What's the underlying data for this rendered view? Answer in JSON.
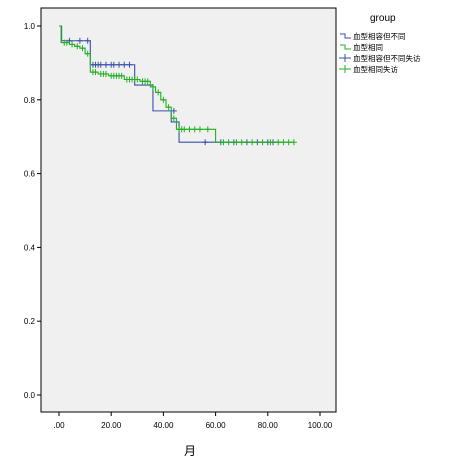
{
  "chart_data": {
    "type": "line",
    "subtype": "kaplan-meier",
    "title": "",
    "xlabel": "月",
    "ylabel": "",
    "xlim": [
      0,
      100
    ],
    "ylim": [
      0,
      1.0
    ],
    "x_ticks": [
      ".00",
      "20.00",
      "40.00",
      "60.00",
      "80.00",
      "100.00"
    ],
    "y_ticks": [
      "0.0",
      "0.2",
      "0.4",
      "0.6",
      "0.8",
      "1.0"
    ],
    "grid": false,
    "plot_background": "#f0f0f0",
    "legend": {
      "title": "group",
      "position": "right-top",
      "items": [
        {
          "label": "血型相容但不同",
          "color": "#3a4fa8",
          "marker": "line"
        },
        {
          "label": "血型相同",
          "color": "#22b022",
          "marker": "line"
        },
        {
          "label": "血型相容但不同失访",
          "color": "#3a4fa8",
          "marker": "plus"
        },
        {
          "label": "血型相同失访",
          "color": "#22b022",
          "marker": "plus"
        }
      ]
    },
    "series": [
      {
        "name": "血型相容但不同",
        "color": "#3a4fa8",
        "steps": [
          [
            0,
            1.0
          ],
          [
            1,
            0.96
          ],
          [
            12,
            0.895
          ],
          [
            29,
            0.84
          ],
          [
            36,
            0.77
          ],
          [
            43,
            0.74
          ],
          [
            46,
            0.685
          ],
          [
            85,
            0.685
          ]
        ],
        "censored": [
          [
            4,
            0.96
          ],
          [
            8,
            0.96
          ],
          [
            11,
            0.96
          ],
          [
            13,
            0.895
          ],
          [
            14,
            0.895
          ],
          [
            15,
            0.895
          ],
          [
            16,
            0.895
          ],
          [
            18,
            0.895
          ],
          [
            20,
            0.895
          ],
          [
            21,
            0.895
          ],
          [
            23,
            0.895
          ],
          [
            25,
            0.895
          ],
          [
            27,
            0.895
          ],
          [
            44,
            0.77
          ],
          [
            56,
            0.685
          ],
          [
            62,
            0.685
          ],
          [
            67,
            0.685
          ],
          [
            72,
            0.685
          ],
          [
            76,
            0.685
          ],
          [
            80,
            0.685
          ],
          [
            82,
            0.685
          ]
        ]
      },
      {
        "name": "血型相同",
        "color": "#22b022",
        "steps": [
          [
            0,
            1.0
          ],
          [
            0.8,
            0.955
          ],
          [
            4,
            0.95
          ],
          [
            6,
            0.945
          ],
          [
            8,
            0.94
          ],
          [
            10,
            0.925
          ],
          [
            12,
            0.875
          ],
          [
            15,
            0.87
          ],
          [
            19,
            0.865
          ],
          [
            25,
            0.855
          ],
          [
            31,
            0.85
          ],
          [
            35,
            0.835
          ],
          [
            37,
            0.82
          ],
          [
            39,
            0.8
          ],
          [
            41,
            0.78
          ],
          [
            43,
            0.75
          ],
          [
            45,
            0.72
          ],
          [
            60,
            0.685
          ],
          [
            90,
            0.685
          ]
        ],
        "censored": [
          [
            2,
            0.955
          ],
          [
            3,
            0.955
          ],
          [
            5,
            0.95
          ],
          [
            7,
            0.945
          ],
          [
            9,
            0.94
          ],
          [
            11,
            0.925
          ],
          [
            13,
            0.875
          ],
          [
            14,
            0.875
          ],
          [
            16,
            0.87
          ],
          [
            17,
            0.87
          ],
          [
            18,
            0.87
          ],
          [
            20,
            0.865
          ],
          [
            21,
            0.865
          ],
          [
            22,
            0.865
          ],
          [
            23,
            0.865
          ],
          [
            24,
            0.865
          ],
          [
            26,
            0.855
          ],
          [
            27,
            0.855
          ],
          [
            28,
            0.855
          ],
          [
            29,
            0.855
          ],
          [
            30,
            0.855
          ],
          [
            32,
            0.85
          ],
          [
            33,
            0.85
          ],
          [
            34,
            0.85
          ],
          [
            36,
            0.835
          ],
          [
            38,
            0.82
          ],
          [
            40,
            0.8
          ],
          [
            42,
            0.78
          ],
          [
            44,
            0.75
          ],
          [
            46,
            0.72
          ],
          [
            47,
            0.72
          ],
          [
            48,
            0.72
          ],
          [
            50,
            0.72
          ],
          [
            52,
            0.72
          ],
          [
            54,
            0.72
          ],
          [
            57,
            0.72
          ],
          [
            63,
            0.685
          ],
          [
            65,
            0.685
          ],
          [
            68,
            0.685
          ],
          [
            70,
            0.685
          ],
          [
            74,
            0.685
          ],
          [
            78,
            0.685
          ],
          [
            81,
            0.685
          ],
          [
            84,
            0.685
          ],
          [
            86,
            0.685
          ],
          [
            88,
            0.685
          ],
          [
            90,
            0.685
          ]
        ]
      }
    ]
  }
}
